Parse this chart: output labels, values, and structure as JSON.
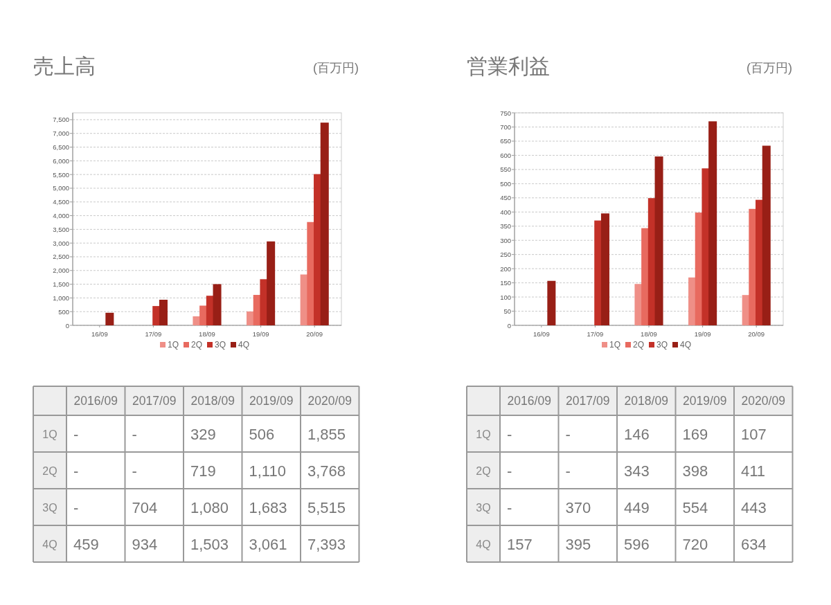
{
  "chart_data": [
    {
      "type": "bar",
      "title": "売上高",
      "subtitle": "(百万円)",
      "categories": [
        "16/09",
        "17/09",
        "18/09",
        "19/09",
        "20/09"
      ],
      "grid": "y",
      "legend": "bottom",
      "ylim": [
        0,
        7750
      ],
      "yticks": [
        0,
        500,
        {
          "value": 1000,
          "label": "1,000"
        },
        {
          "value": 1500,
          "label": "1,500"
        },
        {
          "value": 2000,
          "label": "2,000"
        },
        {
          "value": 2500,
          "label": "2,500"
        },
        {
          "value": 3000,
          "label": "3,000"
        },
        {
          "value": 3500,
          "label": "3,500"
        },
        {
          "value": 4000,
          "label": "4,000"
        },
        {
          "value": 4500,
          "label": "4,500"
        },
        {
          "value": 5000,
          "label": "5,000"
        },
        {
          "value": 5500,
          "label": "5,500"
        },
        {
          "value": 6000,
          "label": "6,000"
        },
        {
          "value": 6500,
          "label": "6,500"
        },
        {
          "value": 7000,
          "label": "7,000"
        },
        {
          "value": 7500,
          "label": "7,500"
        }
      ],
      "annotations": [
        "2016/09",
        "2017/09",
        "2018/09",
        "2019/09",
        "2020/09"
      ],
      "series": [
        {
          "name": "1Q",
          "color": "#ef8f87",
          "values": [
            null,
            null,
            329,
            506,
            1855
          ],
          "value_labels": [
            "-",
            "-",
            "329",
            "506",
            "1,855"
          ]
        },
        {
          "name": "2Q",
          "color": "#e86a5f",
          "values": [
            null,
            null,
            719,
            1110,
            3768
          ],
          "value_labels": [
            "-",
            "-",
            "719",
            "1,110",
            "3,768"
          ]
        },
        {
          "name": "3Q",
          "color": "#c33128",
          "values": [
            null,
            704,
            1080,
            1683,
            5515
          ],
          "value_labels": [
            "-",
            "704",
            "1,080",
            "1,683",
            "5,515"
          ]
        },
        {
          "name": "4Q",
          "color": "#981f16",
          "values": [
            459,
            934,
            1503,
            3061,
            7393
          ],
          "value_labels": [
            "459",
            "934",
            "1,503",
            "3,061",
            "7,393"
          ]
        }
      ]
    },
    {
      "type": "bar",
      "title": "営業利益",
      "subtitle": "(百万円)",
      "categories": [
        "16/09",
        "17/09",
        "18/09",
        "19/09",
        "20/09"
      ],
      "grid": "y",
      "legend": "bottom",
      "ylim": [
        0,
        750
      ],
      "yticks": [
        0,
        50,
        100,
        150,
        200,
        250,
        300,
        350,
        400,
        450,
        500,
        550,
        600,
        650,
        700,
        750
      ],
      "annotations": [
        "2016/09",
        "2017/09",
        "2018/09",
        "2019/09",
        "2020/09"
      ],
      "series": [
        {
          "name": "1Q",
          "color": "#ef8f87",
          "values": [
            null,
            null,
            146,
            169,
            107
          ],
          "value_labels": [
            "-",
            "-",
            "146",
            "169",
            "107"
          ]
        },
        {
          "name": "2Q",
          "color": "#e86a5f",
          "values": [
            null,
            null,
            343,
            398,
            411
          ],
          "value_labels": [
            "-",
            "-",
            "343",
            "398",
            "411"
          ]
        },
        {
          "name": "3Q",
          "color": "#c33128",
          "values": [
            null,
            370,
            449,
            554,
            443
          ],
          "value_labels": [
            "-",
            "370",
            "449",
            "554",
            "443"
          ]
        },
        {
          "name": "4Q",
          "color": "#981f16",
          "values": [
            157,
            395,
            596,
            720,
            634
          ],
          "value_labels": [
            "157",
            "395",
            "596",
            "720",
            "634"
          ]
        }
      ]
    }
  ]
}
